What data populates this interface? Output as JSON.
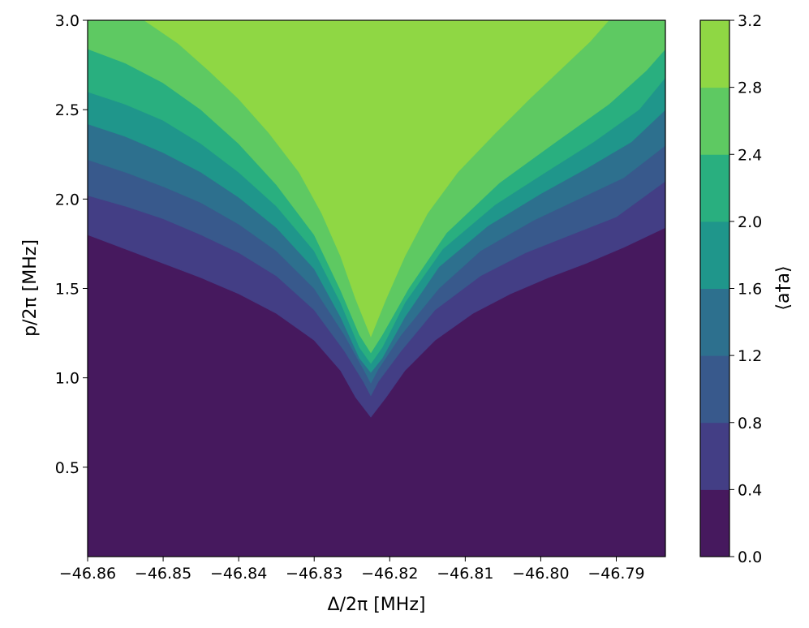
{
  "chart_data": {
    "type": "heatmap",
    "subtype": "filled-contour",
    "title": "",
    "xlabel": "Δ/2π [MHz]",
    "ylabel": "p/2π [MHz]",
    "colorbar_label": "⟨a†a⟩",
    "xlim": [
      -46.86,
      -46.7835
    ],
    "ylim": [
      0.0,
      3.0
    ],
    "x_ticks": [
      -46.86,
      -46.85,
      -46.84,
      -46.83,
      -46.82,
      -46.81,
      -46.8,
      -46.79
    ],
    "x_tick_labels": [
      "−46.86",
      "−46.85",
      "−46.84",
      "−46.83",
      "−46.82",
      "−46.81",
      "−46.80",
      "−46.79"
    ],
    "y_ticks": [
      0.5,
      1.0,
      1.5,
      2.0,
      2.5,
      3.0
    ],
    "y_tick_labels": [
      "0.5",
      "1.0",
      "1.5",
      "2.0",
      "2.5",
      "3.0"
    ],
    "colorbar_ticks": [
      "0.0",
      "0.4",
      "0.8",
      "1.2",
      "1.6",
      "2.0",
      "2.4",
      "2.8",
      "3.2"
    ],
    "levels": [
      0.0,
      0.4,
      0.8,
      1.2,
      1.6,
      2.0,
      2.4,
      2.8,
      3.2
    ],
    "level_colors": [
      "#46195e",
      "#433e85",
      "#38598c",
      "#2d708e",
      "#1f968b",
      "#29af7f",
      "#5ec962",
      "#8fd744",
      "#d2e21b"
    ],
    "resonance_center_x": -46.8225,
    "boundaries": [
      {
        "level": 0.4,
        "y_at_center": 0.78,
        "points": [
          [
            -46.86,
            1.8
          ],
          [
            -46.855,
            1.72
          ],
          [
            -46.85,
            1.64
          ],
          [
            -46.845,
            1.56
          ],
          [
            -46.84,
            1.47
          ],
          [
            -46.835,
            1.36
          ],
          [
            -46.83,
            1.21
          ],
          [
            -46.8265,
            1.04
          ],
          [
            -46.8245,
            0.89
          ],
          [
            -46.8225,
            0.78
          ],
          [
            -46.8205,
            0.89
          ],
          [
            -46.818,
            1.04
          ],
          [
            -46.814,
            1.21
          ],
          [
            -46.809,
            1.36
          ],
          [
            -46.804,
            1.47
          ],
          [
            -46.799,
            1.56
          ],
          [
            -46.794,
            1.64
          ],
          [
            -46.789,
            1.73
          ],
          [
            -46.7835,
            1.84
          ]
        ]
      },
      {
        "level": 0.8,
        "y_at_center": 0.9,
        "points": [
          [
            -46.86,
            2.02
          ],
          [
            -46.855,
            1.96
          ],
          [
            -46.85,
            1.89
          ],
          [
            -46.845,
            1.8
          ],
          [
            -46.84,
            1.7
          ],
          [
            -46.835,
            1.57
          ],
          [
            -46.83,
            1.38
          ],
          [
            -46.826,
            1.15
          ],
          [
            -46.8235,
            0.98
          ],
          [
            -46.8225,
            0.9
          ],
          [
            -46.8215,
            0.98
          ],
          [
            -46.8185,
            1.15
          ],
          [
            -46.814,
            1.38
          ],
          [
            -46.808,
            1.57
          ],
          [
            -46.802,
            1.7
          ],
          [
            -46.796,
            1.8
          ],
          [
            -46.79,
            1.9
          ],
          [
            -46.7835,
            2.1
          ]
        ]
      },
      {
        "level": 1.2,
        "y_at_center": 0.97,
        "points": [
          [
            -46.86,
            2.22
          ],
          [
            -46.855,
            2.15
          ],
          [
            -46.85,
            2.07
          ],
          [
            -46.845,
            1.98
          ],
          [
            -46.84,
            1.86
          ],
          [
            -46.835,
            1.71
          ],
          [
            -46.83,
            1.5
          ],
          [
            -46.826,
            1.24
          ],
          [
            -46.8235,
            1.05
          ],
          [
            -46.8225,
            0.97
          ],
          [
            -46.8215,
            1.05
          ],
          [
            -46.8185,
            1.24
          ],
          [
            -46.8135,
            1.5
          ],
          [
            -46.808,
            1.71
          ],
          [
            -46.801,
            1.88
          ],
          [
            -46.795,
            2.0
          ],
          [
            -46.789,
            2.12
          ],
          [
            -46.7835,
            2.3
          ]
        ]
      },
      {
        "level": 1.6,
        "y_at_center": 1.03,
        "points": [
          [
            -46.86,
            2.42
          ],
          [
            -46.855,
            2.35
          ],
          [
            -46.85,
            2.26
          ],
          [
            -46.845,
            2.15
          ],
          [
            -46.84,
            2.01
          ],
          [
            -46.835,
            1.84
          ],
          [
            -46.83,
            1.61
          ],
          [
            -46.8265,
            1.34
          ],
          [
            -46.824,
            1.11
          ],
          [
            -46.8225,
            1.03
          ],
          [
            -46.821,
            1.11
          ],
          [
            -46.818,
            1.34
          ],
          [
            -46.8135,
            1.62
          ],
          [
            -46.807,
            1.85
          ],
          [
            -46.8,
            2.03
          ],
          [
            -46.794,
            2.17
          ],
          [
            -46.788,
            2.32
          ],
          [
            -46.7835,
            2.5
          ]
        ]
      },
      {
        "level": 2.0,
        "y_at_center": 1.08,
        "points": [
          [
            -46.86,
            2.6
          ],
          [
            -46.855,
            2.53
          ],
          [
            -46.85,
            2.44
          ],
          [
            -46.845,
            2.31
          ],
          [
            -46.84,
            2.15
          ],
          [
            -46.835,
            1.96
          ],
          [
            -46.83,
            1.71
          ],
          [
            -46.8265,
            1.42
          ],
          [
            -46.824,
            1.17
          ],
          [
            -46.8225,
            1.08
          ],
          [
            -46.821,
            1.17
          ],
          [
            -46.818,
            1.42
          ],
          [
            -46.813,
            1.72
          ],
          [
            -46.806,
            1.97
          ],
          [
            -46.799,
            2.16
          ],
          [
            -46.793,
            2.32
          ],
          [
            -46.787,
            2.5
          ],
          [
            -46.7835,
            2.68
          ]
        ]
      },
      {
        "level": 2.4,
        "y_at_center": 1.14,
        "points": [
          [
            -46.86,
            2.84
          ],
          [
            -46.855,
            2.76
          ],
          [
            -46.85,
            2.65
          ],
          [
            -46.845,
            2.5
          ],
          [
            -46.84,
            2.31
          ],
          [
            -46.835,
            2.08
          ],
          [
            -46.83,
            1.8
          ],
          [
            -46.8265,
            1.49
          ],
          [
            -46.824,
            1.24
          ],
          [
            -46.8225,
            1.14
          ],
          [
            -46.821,
            1.24
          ],
          [
            -46.8175,
            1.5
          ],
          [
            -46.8125,
            1.81
          ],
          [
            -46.8055,
            2.09
          ],
          [
            -46.798,
            2.32
          ],
          [
            -46.791,
            2.53
          ],
          [
            -46.786,
            2.72
          ],
          [
            -46.7835,
            2.84
          ]
        ]
      },
      {
        "level": 2.8,
        "y_at_center": 1.23,
        "points": [
          [
            -46.86,
            3.0
          ],
          [
            -46.8525,
            3.0
          ],
          [
            -46.848,
            2.87
          ],
          [
            -46.844,
            2.72
          ],
          [
            -46.84,
            2.56
          ],
          [
            -46.836,
            2.37
          ],
          [
            -46.832,
            2.15
          ],
          [
            -46.829,
            1.92
          ],
          [
            -46.8265,
            1.68
          ],
          [
            -46.8245,
            1.44
          ],
          [
            -46.8225,
            1.23
          ],
          [
            -46.8205,
            1.44
          ],
          [
            -46.818,
            1.68
          ],
          [
            -46.815,
            1.92
          ],
          [
            -46.811,
            2.15
          ],
          [
            -46.806,
            2.37
          ],
          [
            -46.8015,
            2.56
          ],
          [
            -46.797,
            2.74
          ],
          [
            -46.7935,
            2.88
          ],
          [
            -46.791,
            3.0
          ],
          [
            -46.7835,
            3.0
          ]
        ]
      }
    ]
  }
}
